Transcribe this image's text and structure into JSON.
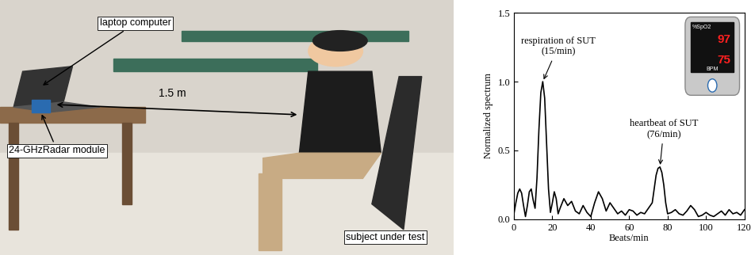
{
  "photo": {
    "labels": {
      "laptop": "laptop computer",
      "radar": "24-GHzRadar module",
      "distance": "1.5 m",
      "subject": "subject under test"
    }
  },
  "chart_data": {
    "type": "line",
    "color": "#000000",
    "x": [
      0,
      1,
      2,
      3,
      4,
      5,
      6,
      7,
      8,
      9,
      10,
      11,
      12,
      13,
      14,
      15,
      16,
      17,
      18,
      19,
      20,
      21,
      22,
      23,
      24,
      26,
      28,
      30,
      32,
      34,
      36,
      38,
      40,
      42,
      44,
      46,
      48,
      50,
      52,
      54,
      56,
      58,
      60,
      62,
      64,
      66,
      68,
      70,
      72,
      73,
      74,
      75,
      76,
      77,
      78,
      79,
      80,
      82,
      84,
      86,
      88,
      90,
      92,
      94,
      96,
      98,
      100,
      102,
      104,
      106,
      108,
      110,
      112,
      114,
      116,
      118,
      120
    ],
    "values": [
      0.04,
      0.12,
      0.19,
      0.22,
      0.19,
      0.1,
      0.02,
      0.1,
      0.2,
      0.22,
      0.14,
      0.08,
      0.3,
      0.65,
      0.92,
      1.0,
      0.88,
      0.55,
      0.22,
      0.05,
      0.12,
      0.2,
      0.15,
      0.04,
      0.08,
      0.15,
      0.1,
      0.13,
      0.06,
      0.04,
      0.1,
      0.05,
      0.02,
      0.12,
      0.2,
      0.15,
      0.06,
      0.12,
      0.08,
      0.04,
      0.06,
      0.03,
      0.07,
      0.06,
      0.03,
      0.05,
      0.04,
      0.08,
      0.12,
      0.22,
      0.32,
      0.37,
      0.38,
      0.34,
      0.25,
      0.12,
      0.04,
      0.05,
      0.07,
      0.04,
      0.03,
      0.06,
      0.1,
      0.07,
      0.02,
      0.03,
      0.05,
      0.03,
      0.02,
      0.04,
      0.06,
      0.03,
      0.07,
      0.04,
      0.05,
      0.03,
      0.07
    ],
    "x_label": "Beats/min",
    "y_label": "Normalized spectrum",
    "xlim": [
      0,
      120
    ],
    "xticks": [
      0,
      20,
      40,
      60,
      80,
      100,
      120
    ],
    "ylim": [
      0,
      1.5
    ],
    "yticks": [
      {
        "value": 0,
        "label": "0.0"
      },
      {
        "value": 0.5,
        "label": "0.5"
      },
      {
        "value": 1.0,
        "label": "1.0"
      },
      {
        "value": 1.5,
        "label": "1.5"
      }
    ],
    "annotations": [
      {
        "text": "respiration of SUT\n(15/min)",
        "x": 15,
        "y": 1.0
      },
      {
        "text": "heartbeat of SUT\n(76/min)",
        "x": 76,
        "y": 0.38
      }
    ]
  },
  "inset": {
    "spo2_label": "%SpO2",
    "spo2": "97",
    "pulse": "75",
    "pulse_label": "BPM"
  }
}
